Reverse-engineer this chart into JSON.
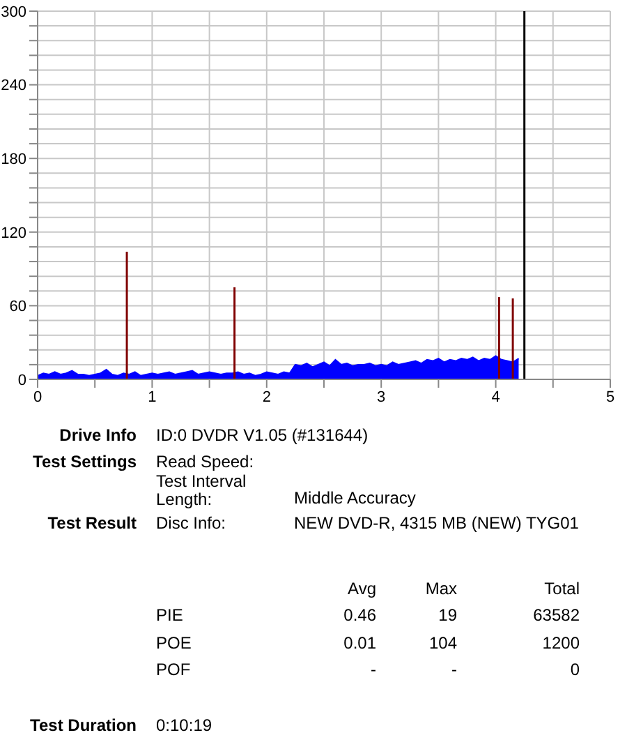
{
  "chart_data": {
    "type": "area",
    "xlim": [
      0,
      5
    ],
    "xticks": [
      0,
      {
        "value": 0.5,
        "label": null
      },
      1,
      {
        "value": 1.5,
        "label": null
      },
      2,
      {
        "value": 2.5,
        "label": null
      },
      3,
      {
        "value": 3.5,
        "label": null
      },
      4,
      {
        "value": 4.5,
        "label": null
      },
      5
    ],
    "ylim": [
      0,
      300
    ],
    "yticks": [
      0,
      {
        "value": 12,
        "label": null
      },
      {
        "value": 24,
        "label": null
      },
      {
        "value": 36,
        "label": null
      },
      {
        "value": 48,
        "label": null
      },
      60,
      {
        "value": 72,
        "label": null
      },
      {
        "value": 84,
        "label": null
      },
      {
        "value": 96,
        "label": null
      },
      {
        "value": 108,
        "label": null
      },
      120,
      {
        "value": 132,
        "label": null
      },
      {
        "value": 144,
        "label": null
      },
      {
        "value": 156,
        "label": null
      },
      {
        "value": 168,
        "label": null
      },
      180,
      {
        "value": 192,
        "label": null
      },
      {
        "value": 204,
        "label": null
      },
      {
        "value": 216,
        "label": null
      },
      {
        "value": 228,
        "label": null
      },
      240,
      {
        "value": 252,
        "label": null
      },
      {
        "value": 264,
        "label": null
      },
      {
        "value": 276,
        "label": null
      },
      {
        "value": 288,
        "label": null
      },
      300
    ],
    "grid": true,
    "series": [
      {
        "color": "#0000ff",
        "x": [
          0,
          0.05,
          0.1,
          0.15,
          0.2,
          0.25,
          0.3,
          0.35,
          0.4,
          0.45,
          0.5,
          0.55,
          0.6,
          0.65,
          0.7,
          0.75,
          0.8,
          0.85,
          0.9,
          0.95,
          1,
          1.05,
          1.1,
          1.15,
          1.2,
          1.25,
          1.3,
          1.35,
          1.4,
          1.45,
          1.5,
          1.55,
          1.6,
          1.65,
          1.7,
          1.75,
          1.8,
          1.85,
          1.9,
          1.95,
          2,
          2.05,
          2.1,
          2.15,
          2.2,
          2.25,
          2.3,
          2.35,
          2.4,
          2.45,
          2.5,
          2.55,
          2.6,
          2.65,
          2.7,
          2.75,
          2.8,
          2.85,
          2.9,
          2.95,
          3,
          3.05,
          3.1,
          3.15,
          3.2,
          3.25,
          3.3,
          3.35,
          3.4,
          3.45,
          3.5,
          3.55,
          3.6,
          3.65,
          3.7,
          3.75,
          3.8,
          3.85,
          3.9,
          3.95,
          4,
          4.05,
          4.1,
          4.15,
          4.2
        ],
        "values": [
          3,
          5,
          4,
          6,
          4,
          5,
          7,
          4,
          4,
          3,
          4,
          5,
          8,
          4,
          3,
          5,
          4,
          6,
          3,
          4,
          5,
          4,
          5,
          6,
          4,
          5,
          6,
          7,
          4,
          5,
          6,
          5,
          4,
          5,
          5,
          6,
          4,
          5,
          3,
          4,
          6,
          5,
          4,
          6,
          5,
          12,
          11,
          13,
          10,
          12,
          14,
          11,
          16,
          12,
          13,
          11,
          12,
          12,
          13,
          11,
          12,
          11,
          14,
          12,
          13,
          14,
          15,
          13,
          16,
          15,
          17,
          14,
          16,
          15,
          17,
          16,
          18,
          15,
          17,
          16,
          19,
          16,
          15,
          14,
          17
        ]
      },
      {
        "type": "bar",
        "color": "#800000",
        "x": [
          0.78,
          1.72,
          4.03,
          4.15
        ],
        "values": [
          104,
          75,
          67,
          66
        ]
      }
    ],
    "ref_lines": [
      {
        "axis": "x",
        "value": 4.25,
        "color": "#000000"
      }
    ],
    "annotations": [
      "Drive Info",
      "ID:0 DVDR V1.05 (#131644)",
      "Test Settings",
      "Read Speed:",
      "Test Interval Length:",
      "Middle Accuracy",
      "Test Result",
      "Disc Info:",
      "NEW DVD-R, 4315 MB (NEW) TYG01",
      "Avg",
      "Max",
      "Total",
      "PIE",
      "0.46",
      "19",
      "63582",
      "POE",
      "0.01",
      "104",
      "1200",
      "POF",
      "-",
      "-",
      "0",
      "Test Duration",
      "0:10:19"
    ]
  }
}
